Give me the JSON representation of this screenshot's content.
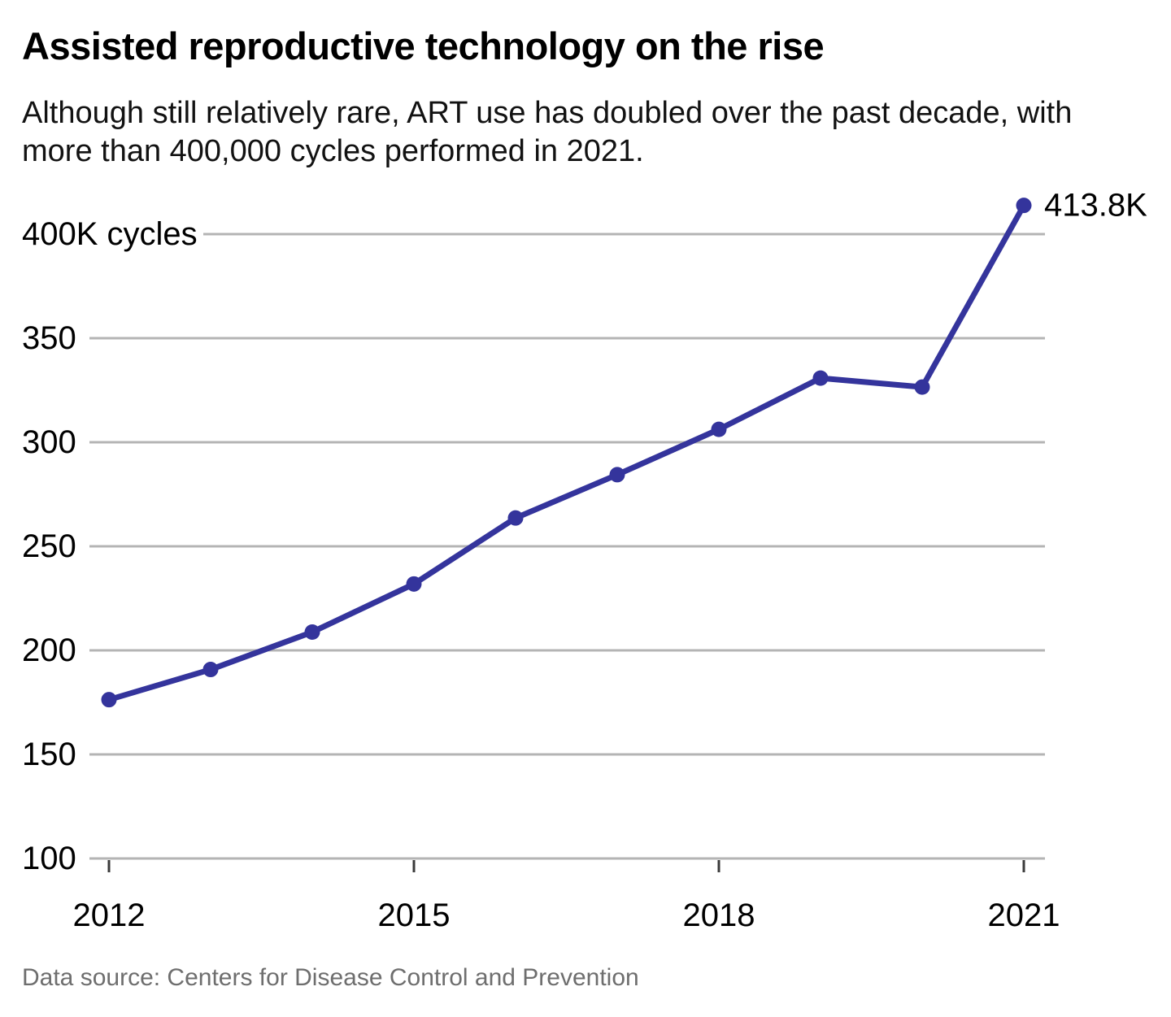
{
  "header": {
    "title": "Assisted reproductive technology on the rise",
    "subtitle": "Although still relatively rare, ART use has doubled over the past decade, with more than 400,000 cycles performed in 2021."
  },
  "footer": {
    "source": "Data source: Centers for Disease Control and Prevention"
  },
  "chart_data": {
    "type": "line",
    "title": "Assisted reproductive technology on the rise",
    "subtitle": "Although still relatively rare, ART use has doubled over the past decade, with more than 400,000 cycles performed in 2021.",
    "x": [
      2012,
      2013,
      2014,
      2015,
      2016,
      2017,
      2018,
      2019,
      2020,
      2021
    ],
    "values": [
      176.3,
      190.8,
      208.8,
      231.9,
      263.6,
      284.4,
      306.2,
      330.8,
      326.5,
      413.8
    ],
    "unit": "K cycles",
    "ylabel": "",
    "xlabel": "",
    "ylim": [
      100,
      415
    ],
    "yticks": [
      100,
      150,
      200,
      250,
      300,
      350,
      400
    ],
    "ytick_labels": [
      "100",
      "150",
      "200",
      "250",
      "300",
      "350",
      "400K cycles"
    ],
    "xticks": [
      2012,
      2015,
      2018,
      2021
    ],
    "xtick_labels": [
      "2012",
      "2015",
      "2018",
      "2021"
    ],
    "end_label": "413.8K",
    "grid": true,
    "legend": "none",
    "line_color": "#34349c",
    "grid_color": "#b4b4b4",
    "tick_color": "#3a3a3a",
    "label_color": "#000000"
  }
}
